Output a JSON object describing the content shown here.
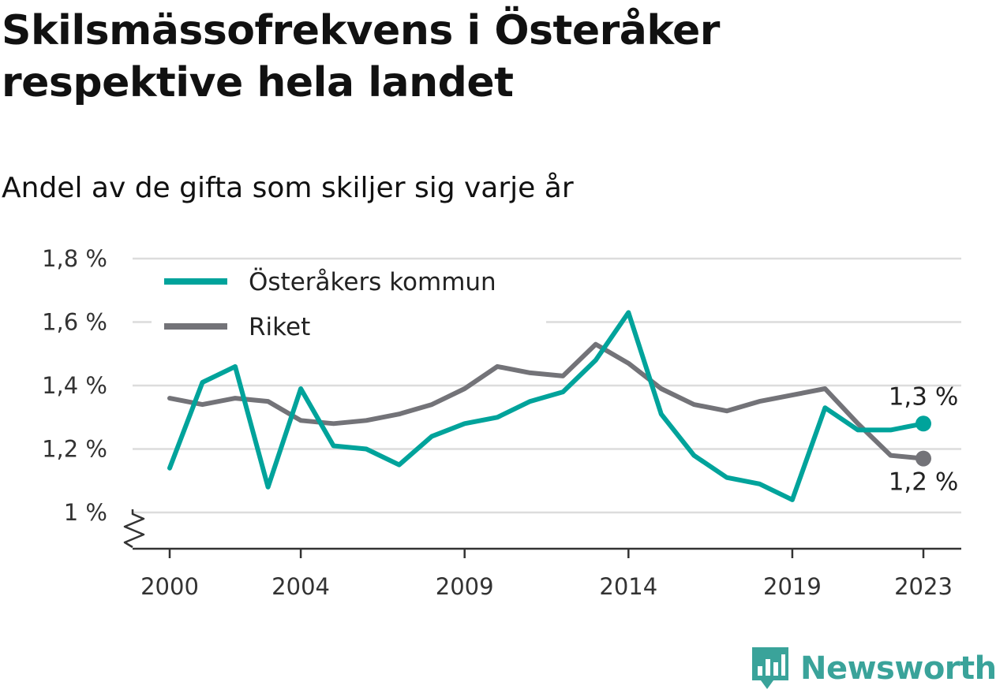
{
  "title": "Skilsmässofrekvens i Österåker respektive hela landet",
  "subtitle": "Andel av de gifta som skiljer sig varje år",
  "brand": {
    "name": "Newsworthy",
    "color": "#3aa39a"
  },
  "chart_data": {
    "type": "line",
    "title": "Skilsmässofrekvens i Österåker respektive hela landet",
    "subtitle": "Andel av de gifta som skiljer sig varje år",
    "ylim": [
      1.0,
      1.8
    ],
    "yticks": [
      1.0,
      1.2,
      1.4,
      1.6,
      1.8
    ],
    "ytick_labels": [
      "1 %",
      "1,2 %",
      "1,4 %",
      "1,6 %",
      "1,8 %"
    ],
    "xlim": [
      2000,
      2023
    ],
    "xticks": [
      2000,
      2004,
      2009,
      2014,
      2019,
      2023
    ],
    "xtick_labels": [
      "2000",
      "2004",
      "2009",
      "2014",
      "2019",
      "2023"
    ],
    "grid": true,
    "legend_position": "top-left",
    "axis_break": true,
    "x": [
      2000,
      2001,
      2002,
      2003,
      2004,
      2005,
      2006,
      2007,
      2008,
      2009,
      2010,
      2011,
      2012,
      2013,
      2014,
      2015,
      2016,
      2017,
      2018,
      2019,
      2020,
      2021,
      2022,
      2023
    ],
    "series": [
      {
        "name": "Österåkers kommun",
        "color": "#00a39b",
        "values": [
          1.14,
          1.41,
          1.46,
          1.08,
          1.39,
          1.21,
          1.2,
          1.15,
          1.24,
          1.28,
          1.3,
          1.35,
          1.38,
          1.48,
          1.63,
          1.31,
          1.18,
          1.11,
          1.09,
          1.04,
          1.33,
          1.26,
          1.26,
          1.28
        ],
        "end_label": "1,3 %"
      },
      {
        "name": "Riket",
        "color": "#737378",
        "values": [
          1.36,
          1.34,
          1.36,
          1.35,
          1.29,
          1.28,
          1.29,
          1.31,
          1.34,
          1.39,
          1.46,
          1.44,
          1.43,
          1.53,
          1.47,
          1.39,
          1.34,
          1.32,
          1.35,
          1.37,
          1.39,
          1.28,
          1.18,
          1.17
        ],
        "end_label": "1,2 %"
      }
    ]
  }
}
